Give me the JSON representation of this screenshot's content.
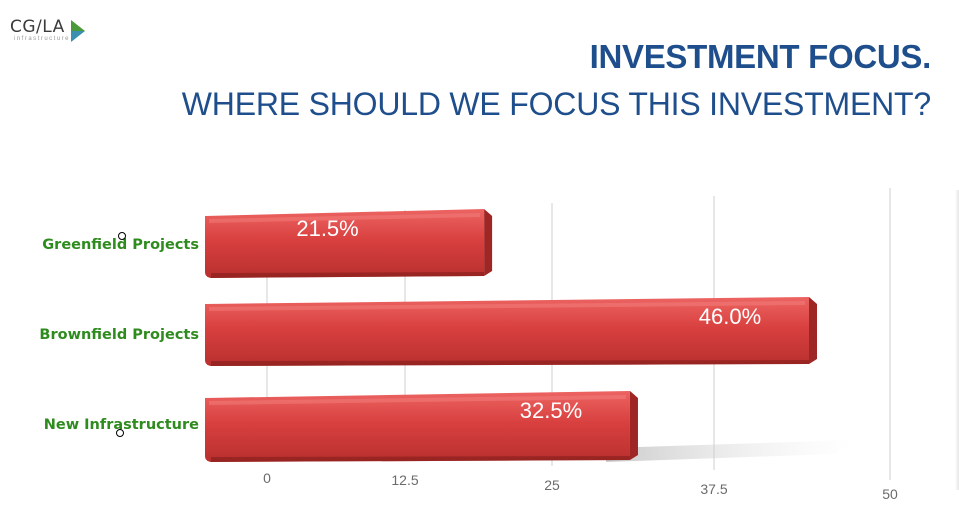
{
  "logo": {
    "text": "CG/LA",
    "subtext": "infrastructure"
  },
  "header": {
    "title": "INVESTMENT FOCUS.",
    "subtitle": "WHERE SHOULD WE FOCUS THIS INVESTMENT?"
  },
  "chart_data": {
    "type": "bar",
    "orientation": "horizontal",
    "categories": [
      "Greenfield Projects",
      "Brownfield Projects",
      "New Infrastructure"
    ],
    "values": [
      21.5,
      46.0,
      32.5
    ],
    "value_labels": [
      "21.5%",
      "46.0%",
      "32.5%"
    ],
    "xlim": [
      0,
      50
    ],
    "x_ticks": [
      "0",
      "12.5",
      "25",
      "37.5",
      "50"
    ],
    "grid": true,
    "colors": {
      "bar": "#d8403f",
      "bar_dark": "#9e2624",
      "label": "#2e8b1e",
      "title": "#1f4e8c"
    }
  }
}
